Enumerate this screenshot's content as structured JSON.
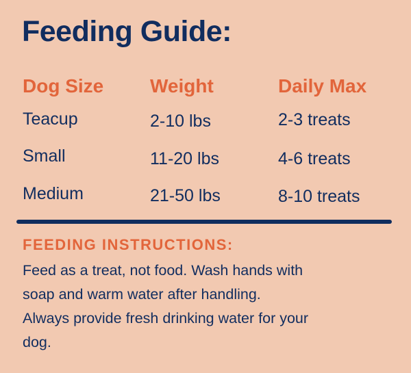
{
  "title": "Feeding Guide:",
  "table": {
    "headers": [
      "Dog Size",
      "Weight",
      "Daily Max"
    ],
    "rows": [
      [
        "Teacup",
        "2-10 lbs",
        "2-3 treats"
      ],
      [
        "Small",
        "11-20 lbs",
        "4-6 treats"
      ],
      [
        "Medium",
        "21-50 lbs",
        "8-10 treats"
      ]
    ]
  },
  "instructions": {
    "heading": "FEEDING INSTRUCTIONS:",
    "text": "Feed as a treat, not food. Wash hands with soap and warm water after handling. Always provide fresh drinking water for your dog."
  },
  "colors": {
    "background": "#f2c9b1",
    "navy": "#112d5f",
    "orange": "#e2653b"
  }
}
